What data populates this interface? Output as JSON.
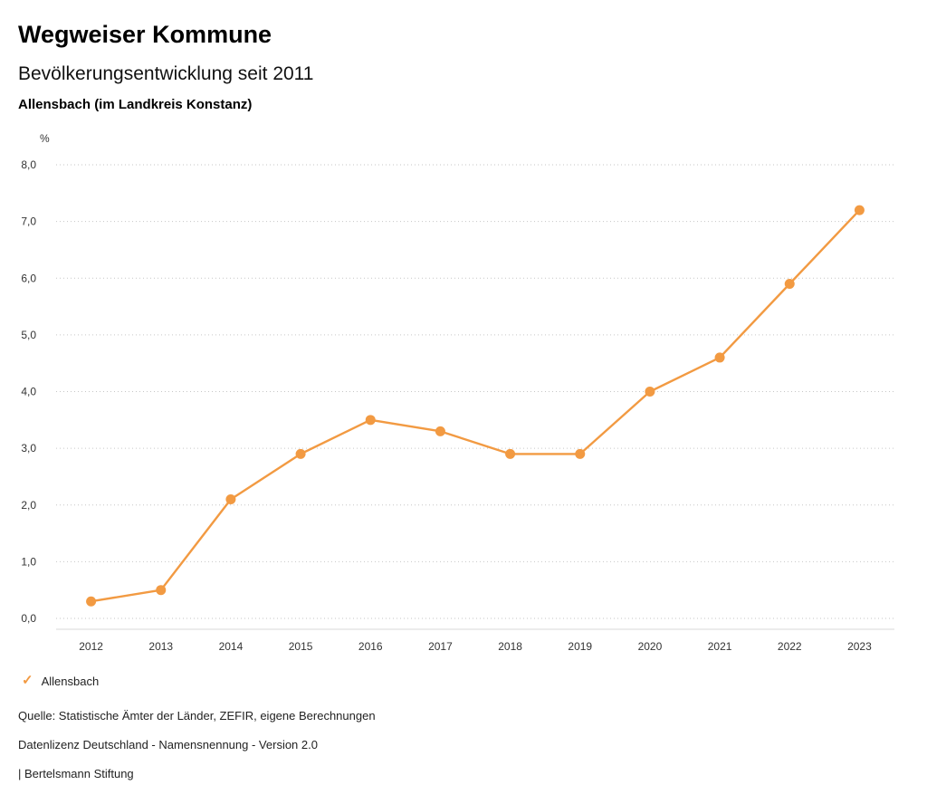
{
  "header": {
    "title": "Wegweiser Kommune",
    "subtitle": "Bevölkerungsentwicklung seit 2011",
    "region": "Allensbach (im Landkreis Konstanz)"
  },
  "chart_data": {
    "type": "line",
    "title": "Bevölkerungsentwicklung seit 2011",
    "xlabel": "",
    "ylabel": "%",
    "unit_label": "%",
    "categories": [
      "2012",
      "2013",
      "2014",
      "2015",
      "2016",
      "2017",
      "2018",
      "2019",
      "2020",
      "2021",
      "2022",
      "2023"
    ],
    "series": [
      {
        "name": "Allensbach",
        "color": "#F29A42",
        "values": [
          0.3,
          0.5,
          2.1,
          2.9,
          3.5,
          3.3,
          2.9,
          2.9,
          4.0,
          4.6,
          5.9,
          7.2
        ]
      }
    ],
    "ylim": [
      0,
      8
    ],
    "ytick_step": 1,
    "ytick_labels": [
      "0,0",
      "1,0",
      "2,0",
      "3,0",
      "4,0",
      "5,0",
      "6,0",
      "7,0",
      "8,0"
    ],
    "grid": "dotted-horizontal",
    "legend_position": "bottom-left"
  },
  "legend": {
    "items": [
      {
        "label": "Allensbach",
        "marker": "check-icon",
        "marker_glyph": "✓",
        "color": "#F29A42"
      }
    ]
  },
  "footer": {
    "source": "Quelle: Statistische Ämter der Länder, ZEFIR, eigene Berechnungen",
    "license": "Datenlizenz Deutschland - Namensnennung - Version 2.0",
    "publisher": "| Bertelsmann Stiftung"
  }
}
